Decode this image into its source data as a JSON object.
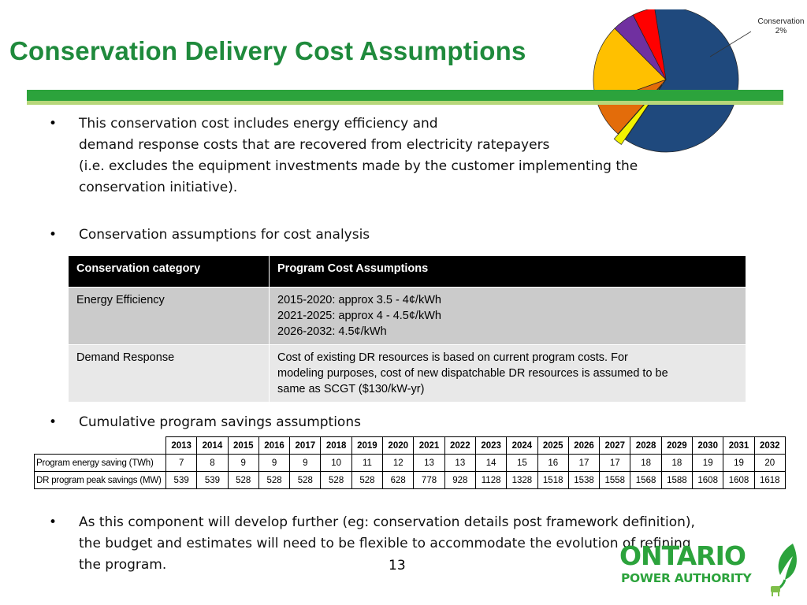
{
  "slide": {
    "title": "Conservation Delivery Cost Assumptions",
    "page_number": "13"
  },
  "pie": {
    "label_line1": "Conservation",
    "label_line2": "2%",
    "slices": [
      {
        "color": "#1f497d",
        "value": 62
      },
      {
        "color": "#f2f200",
        "value": 2
      },
      {
        "color": "#e36c0a",
        "value": 8
      },
      {
        "color": "#ffc000",
        "value": 18
      },
      {
        "color": "#7030a0",
        "value": 5
      },
      {
        "color": "#ff0000",
        "value": 5
      }
    ]
  },
  "bullets": {
    "b1_line1": "This conservation cost includes energy efficiency and",
    "b1_line2": "demand response costs that are recovered from electricity ratepayers",
    "b1_line3": "(i.e. excludes the equipment investments made by the customer implementing the",
    "b1_line4": "conservation initiative).",
    "b2": "Conservation assumptions for cost analysis",
    "b3": "Cumulative program savings assumptions",
    "b4_line1": "As this component will develop further (eg: conservation details post framework definition),",
    "b4_line2": "the budget and estimates will need to be flexible to accommodate the evolution of refining",
    "b4_line3": "the program.",
    "symbol": "•"
  },
  "cost_table": {
    "headers": [
      "Conservation category",
      " Program Cost Assumptions"
    ],
    "rows": [
      {
        "category": "Energy Efficiency",
        "lines": [
          "2015-2020: approx 3.5 - 4¢/kWh",
          "2021-2025: approx 4 - 4.5¢/kWh",
          "2026-2032: 4.5¢/kWh"
        ]
      },
      {
        "category": "Demand Response",
        "lines": [
          "Cost of existing DR resources is based on current program costs.  For",
          "modeling purposes, cost of new dispatchable DR resources is assumed to be",
          "same as SCGT ($130/kW-yr)"
        ]
      }
    ]
  },
  "savings_table": {
    "years": [
      "2013",
      "2014",
      "2015",
      "2016",
      "2017",
      "2018",
      "2019",
      "2020",
      "2021",
      "2022",
      "2023",
      "2024",
      "2025",
      "2026",
      "2027",
      "2028",
      "2029",
      "2030",
      "2031",
      "2032"
    ],
    "rows": [
      {
        "label": "Program energy saving (TWh)",
        "values": [
          "7",
          "8",
          "9",
          "9",
          "9",
          "10",
          "11",
          "12",
          "13",
          "13",
          "14",
          "15",
          "16",
          "17",
          "17",
          "18",
          "18",
          "19",
          "19",
          "20"
        ]
      },
      {
        "label": "DR program peak savings (MW)",
        "values": [
          "539",
          "539",
          "528",
          "528",
          "528",
          "528",
          "528",
          "628",
          "778",
          "928",
          "1128",
          "1328",
          "1518",
          "1538",
          "1558",
          "1568",
          "1588",
          "1608",
          "1608",
          "1618"
        ]
      }
    ]
  },
  "logo": {
    "line1": "ONTARIO",
    "line2": "POWER AUTHORITY",
    "brand_color": "#2ca33c"
  }
}
